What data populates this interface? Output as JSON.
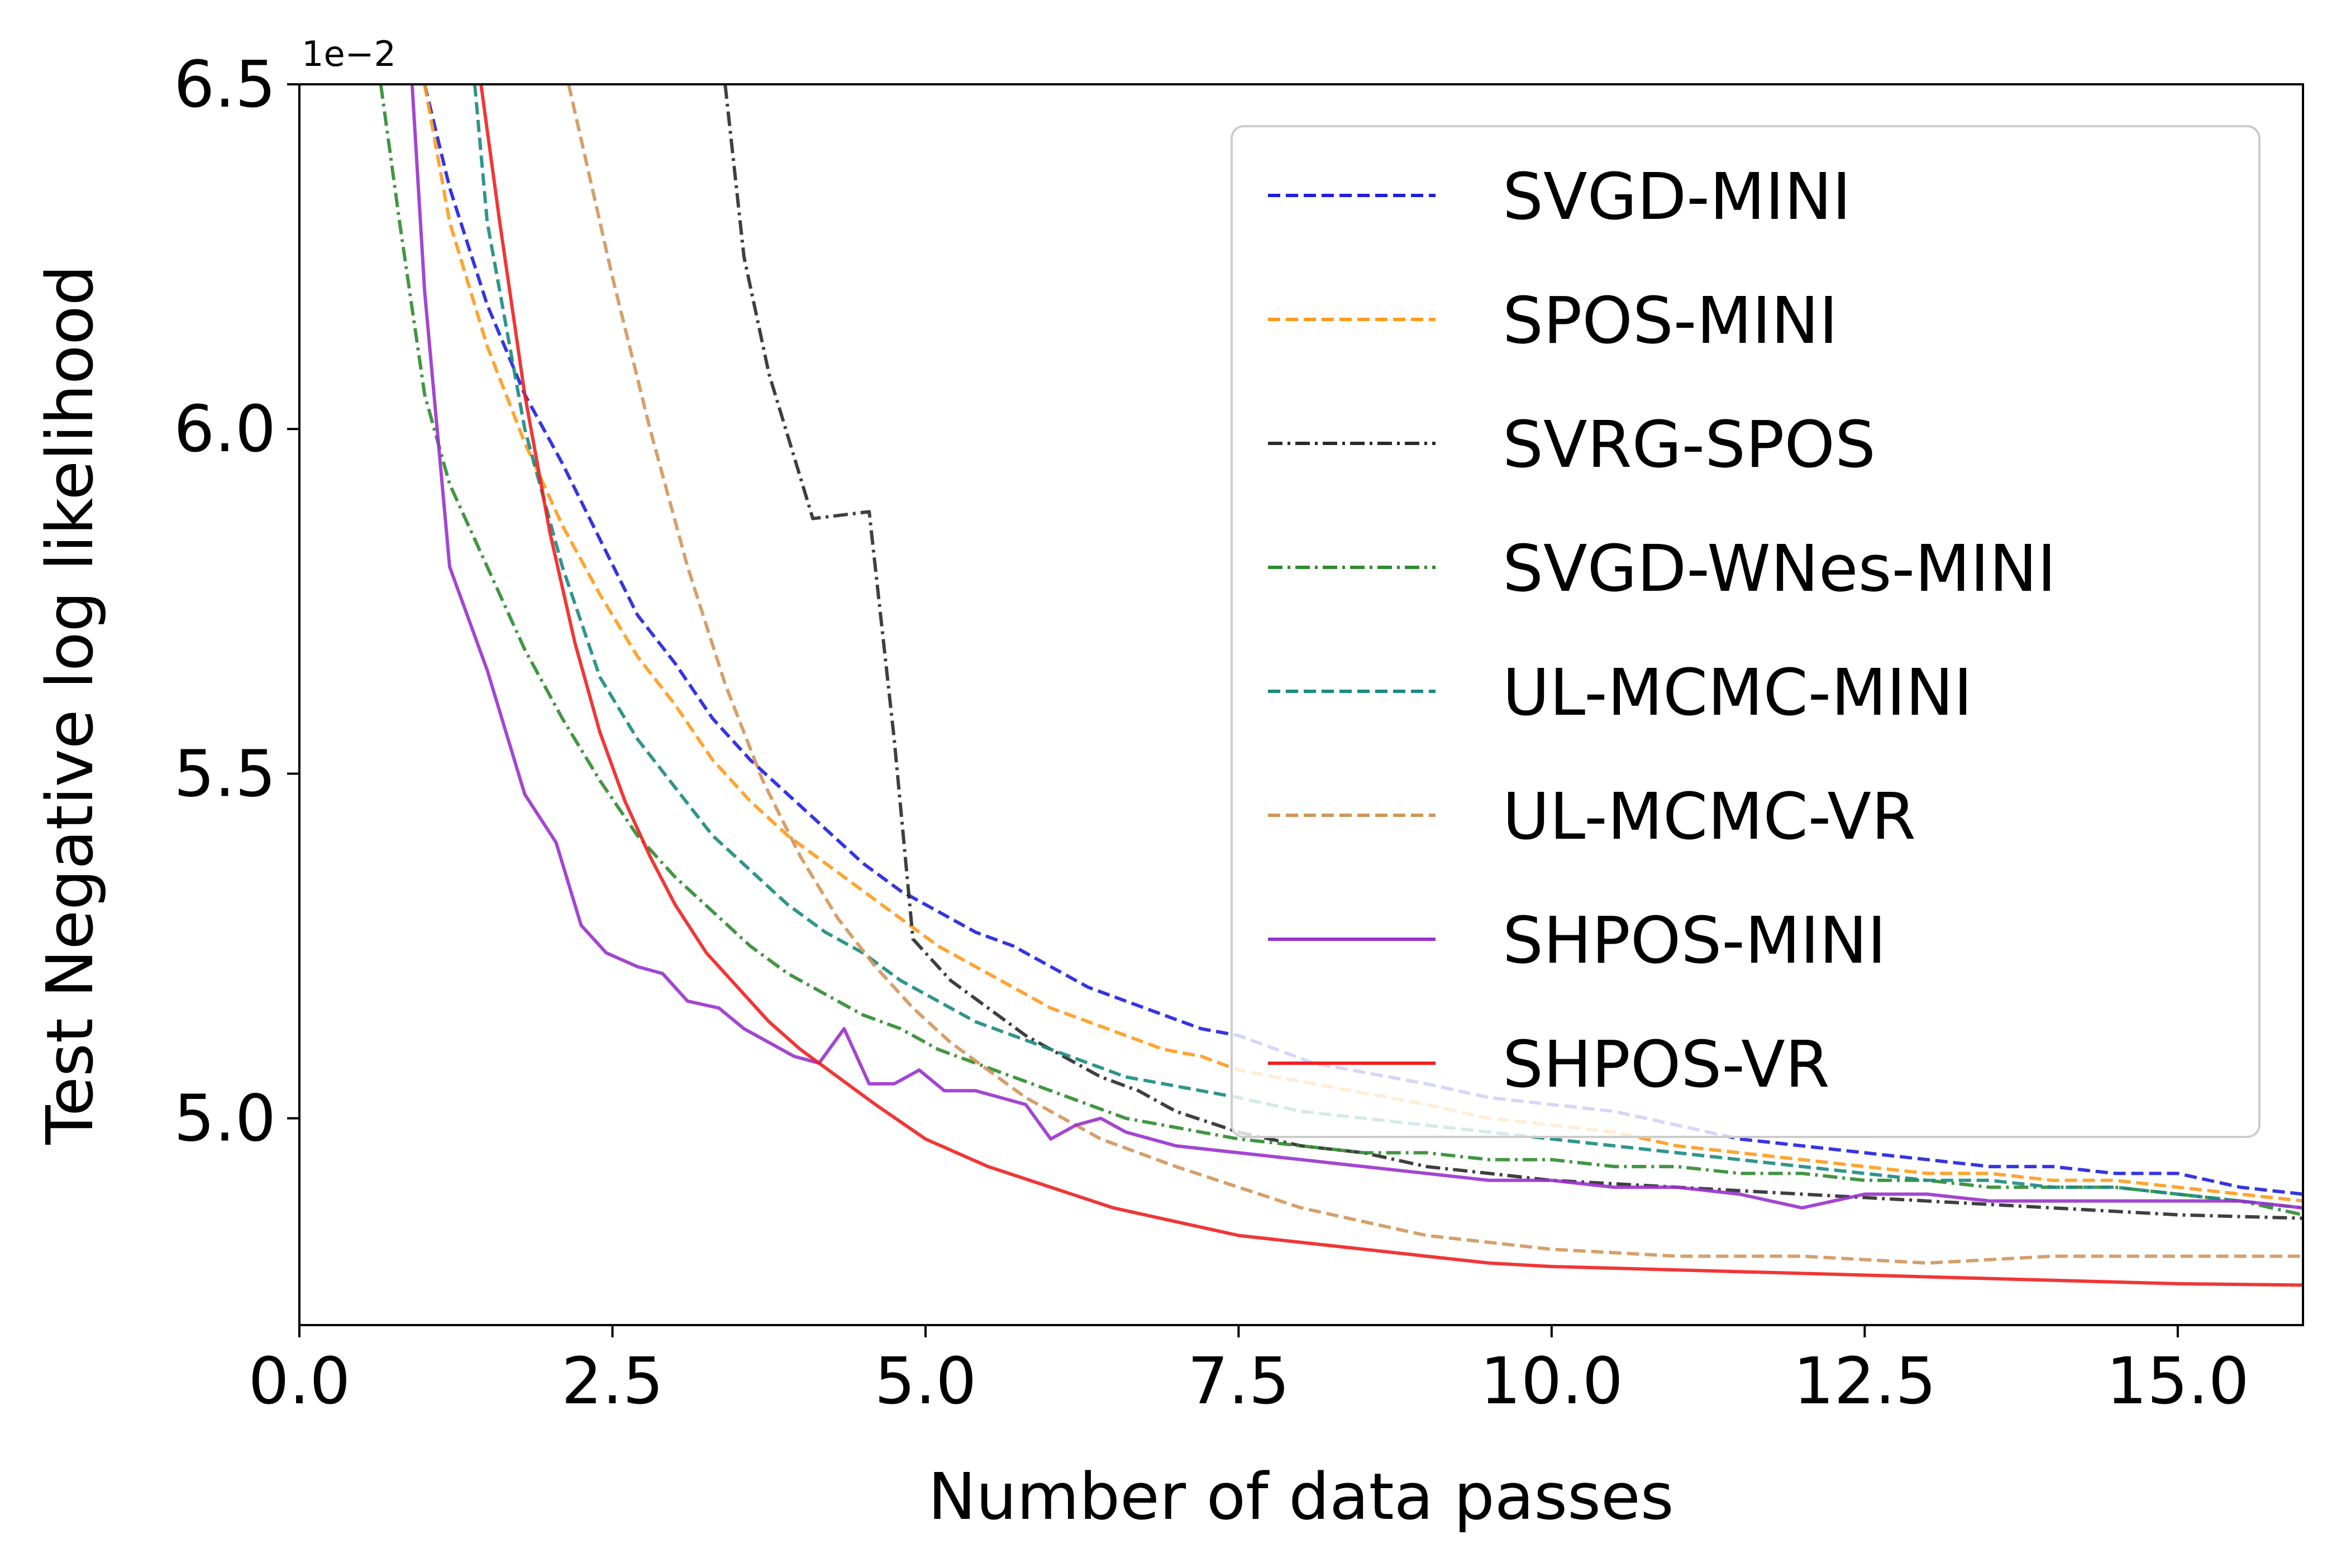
{
  "chart_data": {
    "type": "line",
    "title": "",
    "xlabel": "Number of data passes",
    "ylabel": "Test Negative log likelihood",
    "y_offset_label": "1e−2",
    "xlim": [
      0,
      16
    ],
    "ylim": [
      4.7,
      6.5
    ],
    "x_ticks": [
      0,
      2.5,
      5,
      7.5,
      10,
      12.5,
      15
    ],
    "x_tick_labels": [
      "0.0",
      "2.5",
      "5.0",
      "7.5",
      "10.0",
      "12.5",
      "15.0"
    ],
    "y_ticks": [
      5.0,
      5.5,
      6.0,
      6.5
    ],
    "y_tick_labels": [
      "5.0",
      "5.5",
      "6.0",
      "6.5"
    ],
    "grid": false,
    "legend_position": "top-right",
    "series": [
      {
        "name": "SVGD-MINI",
        "color": "#1f1fe0",
        "dash": "dashed",
        "points": [
          [
            1.0,
            6.5
          ],
          [
            1.2,
            6.35
          ],
          [
            1.5,
            6.18
          ],
          [
            1.8,
            6.05
          ],
          [
            2.1,
            5.95
          ],
          [
            2.4,
            5.84
          ],
          [
            2.7,
            5.73
          ],
          [
            3.0,
            5.66
          ],
          [
            3.3,
            5.58
          ],
          [
            3.6,
            5.52
          ],
          [
            3.9,
            5.47
          ],
          [
            4.2,
            5.42
          ],
          [
            4.5,
            5.37
          ],
          [
            4.8,
            5.33
          ],
          [
            5.1,
            5.3
          ],
          [
            5.4,
            5.27
          ],
          [
            5.7,
            5.25
          ],
          [
            6.0,
            5.22
          ],
          [
            6.3,
            5.19
          ],
          [
            6.6,
            5.17
          ],
          [
            6.9,
            5.15
          ],
          [
            7.2,
            5.13
          ],
          [
            7.5,
            5.12
          ],
          [
            7.8,
            5.1
          ],
          [
            8.1,
            5.08
          ],
          [
            8.4,
            5.07
          ],
          [
            8.7,
            5.06
          ],
          [
            9.0,
            5.05
          ],
          [
            9.5,
            5.03
          ],
          [
            10.0,
            5.02
          ],
          [
            10.5,
            5.01
          ],
          [
            11.0,
            4.99
          ],
          [
            11.5,
            4.97
          ],
          [
            12.0,
            4.96
          ],
          [
            12.5,
            4.95
          ],
          [
            13.0,
            4.94
          ],
          [
            13.5,
            4.93
          ],
          [
            14.0,
            4.93
          ],
          [
            14.5,
            4.92
          ],
          [
            15.0,
            4.92
          ],
          [
            15.5,
            4.9
          ],
          [
            16.0,
            4.89
          ]
        ]
      },
      {
        "name": "SPOS-MINI",
        "color": "#ff9a1a",
        "dash": "dashed",
        "points": [
          [
            1.0,
            6.5
          ],
          [
            1.2,
            6.3
          ],
          [
            1.5,
            6.12
          ],
          [
            1.8,
            5.98
          ],
          [
            2.1,
            5.86
          ],
          [
            2.4,
            5.76
          ],
          [
            2.7,
            5.67
          ],
          [
            3.0,
            5.6
          ],
          [
            3.3,
            5.52
          ],
          [
            3.6,
            5.46
          ],
          [
            3.9,
            5.41
          ],
          [
            4.2,
            5.37
          ],
          [
            4.5,
            5.33
          ],
          [
            4.8,
            5.29
          ],
          [
            5.1,
            5.25
          ],
          [
            5.4,
            5.22
          ],
          [
            5.7,
            5.19
          ],
          [
            6.0,
            5.16
          ],
          [
            6.3,
            5.14
          ],
          [
            6.6,
            5.12
          ],
          [
            6.9,
            5.1
          ],
          [
            7.2,
            5.09
          ],
          [
            7.5,
            5.07
          ],
          [
            7.8,
            5.06
          ],
          [
            8.1,
            5.05
          ],
          [
            8.4,
            5.04
          ],
          [
            8.7,
            5.03
          ],
          [
            9.0,
            5.02
          ],
          [
            9.5,
            5.0
          ],
          [
            10.0,
            4.99
          ],
          [
            10.5,
            4.98
          ],
          [
            11.0,
            4.96
          ],
          [
            11.5,
            4.95
          ],
          [
            12.0,
            4.94
          ],
          [
            12.5,
            4.93
          ],
          [
            13.0,
            4.92
          ],
          [
            13.5,
            4.92
          ],
          [
            14.0,
            4.91
          ],
          [
            14.5,
            4.91
          ],
          [
            15.0,
            4.9
          ],
          [
            15.5,
            4.89
          ],
          [
            16.0,
            4.88
          ]
        ]
      },
      {
        "name": "SVRG-SPOS",
        "color": "#2a2a2a",
        "dash": "dashdot",
        "points": [
          [
            3.4,
            6.5
          ],
          [
            3.55,
            6.25
          ],
          [
            3.75,
            6.08
          ],
          [
            4.1,
            5.87
          ],
          [
            4.55,
            5.88
          ],
          [
            4.75,
            5.55
          ],
          [
            4.9,
            5.26
          ],
          [
            5.2,
            5.2
          ],
          [
            5.5,
            5.16
          ],
          [
            5.8,
            5.12
          ],
          [
            6.1,
            5.09
          ],
          [
            6.4,
            5.06
          ],
          [
            6.7,
            5.04
          ],
          [
            7.0,
            5.01
          ],
          [
            7.5,
            4.98
          ],
          [
            8.0,
            4.96
          ],
          [
            8.5,
            4.95
          ],
          [
            9.0,
            4.93
          ],
          [
            9.5,
            4.92
          ],
          [
            10.0,
            4.91
          ],
          [
            11.0,
            4.9
          ],
          [
            12.0,
            4.89
          ],
          [
            13.0,
            4.88
          ],
          [
            14.0,
            4.87
          ],
          [
            15.0,
            4.86
          ],
          [
            16.0,
            4.855
          ]
        ]
      },
      {
        "name": "SVGD-WNes-MINI",
        "color": "#2e8b2e",
        "dash": "dashdot",
        "points": [
          [
            0.65,
            6.5
          ],
          [
            0.8,
            6.3
          ],
          [
            1.0,
            6.05
          ],
          [
            1.2,
            5.92
          ],
          [
            1.5,
            5.8
          ],
          [
            1.8,
            5.68
          ],
          [
            2.1,
            5.58
          ],
          [
            2.4,
            5.49
          ],
          [
            2.7,
            5.41
          ],
          [
            3.0,
            5.35
          ],
          [
            3.3,
            5.3
          ],
          [
            3.6,
            5.25
          ],
          [
            3.9,
            5.21
          ],
          [
            4.2,
            5.18
          ],
          [
            4.5,
            5.15
          ],
          [
            4.8,
            5.13
          ],
          [
            5.1,
            5.1
          ],
          [
            5.4,
            5.08
          ],
          [
            5.7,
            5.06
          ],
          [
            6.0,
            5.04
          ],
          [
            6.3,
            5.02
          ],
          [
            6.6,
            5.0
          ],
          [
            6.9,
            4.99
          ],
          [
            7.2,
            4.98
          ],
          [
            7.5,
            4.97
          ],
          [
            8.0,
            4.96
          ],
          [
            8.5,
            4.95
          ],
          [
            9.0,
            4.95
          ],
          [
            9.5,
            4.94
          ],
          [
            10.0,
            4.94
          ],
          [
            10.5,
            4.93
          ],
          [
            11.0,
            4.93
          ],
          [
            11.5,
            4.92
          ],
          [
            12.0,
            4.92
          ],
          [
            12.5,
            4.91
          ],
          [
            13.0,
            4.91
          ],
          [
            13.5,
            4.9
          ],
          [
            14.0,
            4.9
          ],
          [
            14.5,
            4.9
          ],
          [
            15.0,
            4.89
          ],
          [
            15.5,
            4.88
          ],
          [
            16.0,
            4.86
          ]
        ]
      },
      {
        "name": "UL-MCMC-MINI",
        "color": "#1a8a80",
        "dash": "dashed",
        "points": [
          [
            1.4,
            6.5
          ],
          [
            1.5,
            6.3
          ],
          [
            1.8,
            6.0
          ],
          [
            2.1,
            5.8
          ],
          [
            2.4,
            5.64
          ],
          [
            2.7,
            5.55
          ],
          [
            3.0,
            5.48
          ],
          [
            3.3,
            5.41
          ],
          [
            3.6,
            5.36
          ],
          [
            3.9,
            5.31
          ],
          [
            4.2,
            5.27
          ],
          [
            4.5,
            5.24
          ],
          [
            4.8,
            5.2
          ],
          [
            5.1,
            5.17
          ],
          [
            5.4,
            5.14
          ],
          [
            5.7,
            5.12
          ],
          [
            6.0,
            5.1
          ],
          [
            6.3,
            5.08
          ],
          [
            6.6,
            5.06
          ],
          [
            6.9,
            5.05
          ],
          [
            7.2,
            5.04
          ],
          [
            7.5,
            5.03
          ],
          [
            8.0,
            5.01
          ],
          [
            8.5,
            5.0
          ],
          [
            9.0,
            4.99
          ],
          [
            9.5,
            4.98
          ],
          [
            10.0,
            4.97
          ],
          [
            10.5,
            4.96
          ],
          [
            11.0,
            4.95
          ],
          [
            11.5,
            4.94
          ],
          [
            12.0,
            4.93
          ],
          [
            12.5,
            4.92
          ],
          [
            13.0,
            4.91
          ],
          [
            13.5,
            4.91
          ],
          [
            14.0,
            4.9
          ],
          [
            14.5,
            4.9
          ],
          [
            15.0,
            4.89
          ],
          [
            15.5,
            4.88
          ],
          [
            16.0,
            4.87
          ]
        ]
      },
      {
        "name": "UL-MCMC-VR",
        "color": "#d2955a",
        "dash": "dashed",
        "points": [
          [
            2.15,
            6.5
          ],
          [
            2.5,
            6.22
          ],
          [
            2.8,
            6.0
          ],
          [
            3.1,
            5.8
          ],
          [
            3.4,
            5.63
          ],
          [
            3.7,
            5.49
          ],
          [
            4.0,
            5.38
          ],
          [
            4.3,
            5.29
          ],
          [
            4.6,
            5.22
          ],
          [
            4.9,
            5.16
          ],
          [
            5.2,
            5.11
          ],
          [
            5.5,
            5.07
          ],
          [
            5.8,
            5.03
          ],
          [
            6.1,
            5.0
          ],
          [
            6.4,
            4.97
          ],
          [
            6.7,
            4.95
          ],
          [
            7.0,
            4.93
          ],
          [
            7.5,
            4.9
          ],
          [
            8.0,
            4.87
          ],
          [
            8.5,
            4.85
          ],
          [
            9.0,
            4.83
          ],
          [
            9.5,
            4.82
          ],
          [
            10.0,
            4.81
          ],
          [
            11.0,
            4.8
          ],
          [
            12.0,
            4.8
          ],
          [
            13.0,
            4.79
          ],
          [
            14.0,
            4.8
          ],
          [
            15.0,
            4.8
          ],
          [
            16.0,
            4.8
          ]
        ]
      },
      {
        "name": "SHPOS-MINI",
        "color": "#9932cc",
        "dash": "solid",
        "points": [
          [
            0.9,
            6.5
          ],
          [
            1.0,
            6.2
          ],
          [
            1.2,
            5.8
          ],
          [
            1.5,
            5.65
          ],
          [
            1.8,
            5.47
          ],
          [
            2.05,
            5.4
          ],
          [
            2.25,
            5.28
          ],
          [
            2.45,
            5.24
          ],
          [
            2.7,
            5.22
          ],
          [
            2.9,
            5.21
          ],
          [
            3.1,
            5.17
          ],
          [
            3.35,
            5.16
          ],
          [
            3.55,
            5.13
          ],
          [
            3.75,
            5.11
          ],
          [
            3.95,
            5.09
          ],
          [
            4.15,
            5.08
          ],
          [
            4.35,
            5.13
          ],
          [
            4.55,
            5.05
          ],
          [
            4.75,
            5.05
          ],
          [
            4.95,
            5.07
          ],
          [
            5.15,
            5.04
          ],
          [
            5.4,
            5.04
          ],
          [
            5.6,
            5.03
          ],
          [
            5.8,
            5.02
          ],
          [
            6.0,
            4.97
          ],
          [
            6.2,
            4.99
          ],
          [
            6.4,
            5.0
          ],
          [
            6.6,
            4.98
          ],
          [
            6.8,
            4.97
          ],
          [
            7.0,
            4.96
          ],
          [
            7.5,
            4.95
          ],
          [
            8.0,
            4.94
          ],
          [
            8.5,
            4.93
          ],
          [
            9.0,
            4.92
          ],
          [
            9.5,
            4.91
          ],
          [
            10.0,
            4.91
          ],
          [
            10.5,
            4.9
          ],
          [
            11.0,
            4.9
          ],
          [
            11.5,
            4.89
          ],
          [
            12.0,
            4.87
          ],
          [
            12.5,
            4.89
          ],
          [
            13.0,
            4.89
          ],
          [
            13.5,
            4.88
          ],
          [
            14.0,
            4.88
          ],
          [
            14.5,
            4.88
          ],
          [
            15.0,
            4.88
          ],
          [
            15.5,
            4.88
          ],
          [
            16.0,
            4.87
          ]
        ]
      },
      {
        "name": "SHPOS-VR",
        "color": "#f02020",
        "dash": "solid",
        "points": [
          [
            1.45,
            6.5
          ],
          [
            1.6,
            6.3
          ],
          [
            1.8,
            6.05
          ],
          [
            2.0,
            5.85
          ],
          [
            2.2,
            5.69
          ],
          [
            2.4,
            5.56
          ],
          [
            2.6,
            5.46
          ],
          [
            2.8,
            5.38
          ],
          [
            3.0,
            5.31
          ],
          [
            3.25,
            5.24
          ],
          [
            3.5,
            5.19
          ],
          [
            3.75,
            5.14
          ],
          [
            4.0,
            5.1
          ],
          [
            4.3,
            5.06
          ],
          [
            4.6,
            5.02
          ],
          [
            5.0,
            4.97
          ],
          [
            5.5,
            4.93
          ],
          [
            6.0,
            4.9
          ],
          [
            6.5,
            4.87
          ],
          [
            7.0,
            4.85
          ],
          [
            7.5,
            4.83
          ],
          [
            8.0,
            4.82
          ],
          [
            8.5,
            4.81
          ],
          [
            9.0,
            4.8
          ],
          [
            9.5,
            4.79
          ],
          [
            10.0,
            4.785
          ],
          [
            11.0,
            4.78
          ],
          [
            12.0,
            4.775
          ],
          [
            13.0,
            4.77
          ],
          [
            14.0,
            4.765
          ],
          [
            15.0,
            4.76
          ],
          [
            16.0,
            4.758
          ]
        ]
      }
    ]
  }
}
